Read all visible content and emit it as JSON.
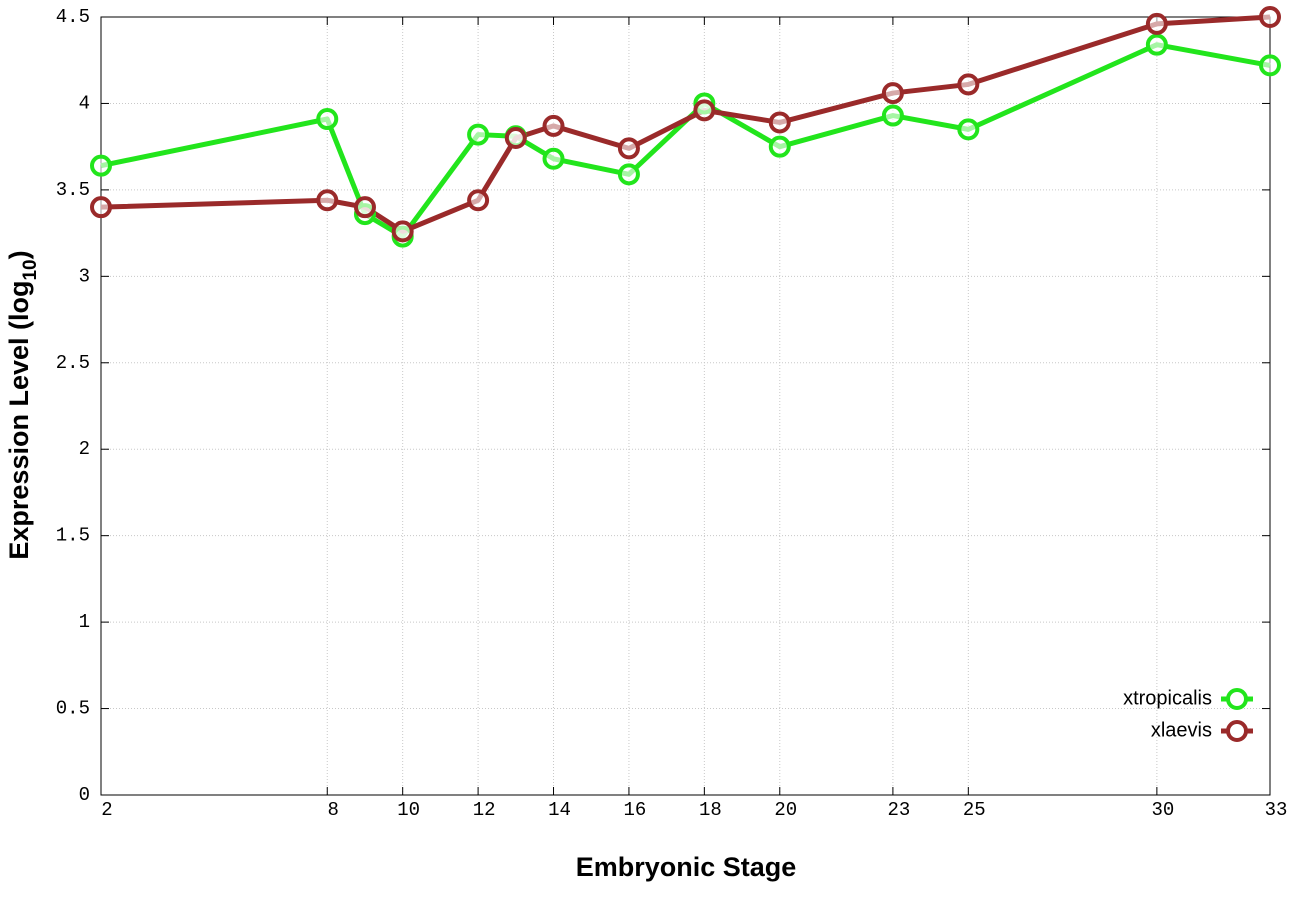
{
  "chart_data": {
    "type": "line",
    "xlabel": "Embryonic Stage",
    "ylabel_parts": [
      "Expression Level (log",
      "10",
      ")"
    ],
    "x": [
      2,
      8,
      9,
      10,
      12,
      13,
      14,
      16,
      18,
      20,
      23,
      25,
      30,
      33
    ],
    "series": [
      {
        "name": "xtropicalis",
        "color": "#22e51c",
        "values": [
          3.64,
          3.91,
          3.36,
          3.23,
          3.82,
          3.81,
          3.68,
          3.59,
          4.0,
          3.75,
          3.93,
          3.85,
          4.34,
          4.22
        ]
      },
      {
        "name": "xlaevis",
        "color": "#9a2a2a",
        "values": [
          3.4,
          3.44,
          3.4,
          3.26,
          3.44,
          3.8,
          3.87,
          3.74,
          3.96,
          3.89,
          4.06,
          4.11,
          4.46,
          4.5
        ]
      }
    ],
    "xlim": [
      2,
      33
    ],
    "xticks": [
      2,
      8,
      10,
      12,
      14,
      16,
      18,
      20,
      23,
      25,
      30,
      33
    ],
    "ylim": [
      0,
      4.5
    ],
    "yticks": [
      0,
      0.5,
      1,
      1.5,
      2,
      2.5,
      3,
      3.5,
      4,
      4.5
    ],
    "grid": true,
    "legend": "lower right"
  }
}
